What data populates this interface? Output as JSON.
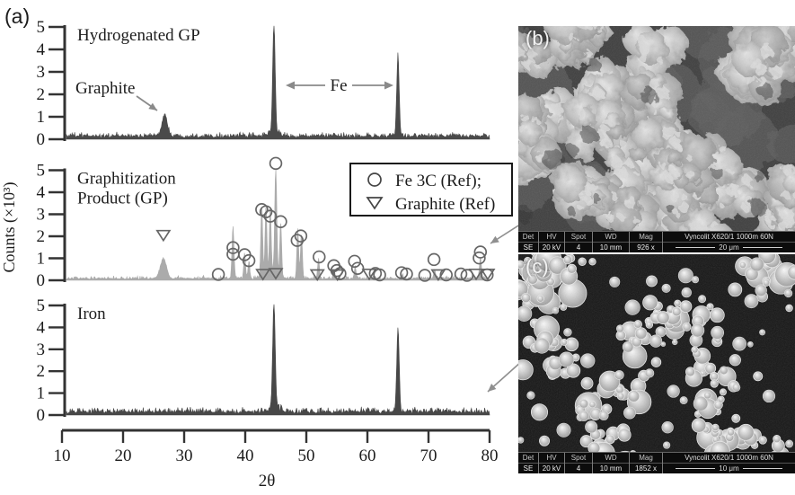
{
  "figure_label": "(a)",
  "axis": {
    "xlabel": "2θ",
    "ylabel": "Counts (×10³)",
    "x_ticks": [
      10,
      20,
      30,
      40,
      50,
      60,
      70,
      80
    ],
    "y_ticks": [
      0,
      1,
      2,
      3,
      4,
      5
    ]
  },
  "legend": {
    "items": [
      {
        "marker": "circle",
        "label": "Fe 3C (Ref);"
      },
      {
        "marker": "triangle-down",
        "label": "Graphite (Ref)"
      }
    ]
  },
  "chart_data": [
    {
      "type": "line",
      "title": "Hydrogenated GP",
      "xlabel": "2θ",
      "ylabel": "Counts (×10³)",
      "xlim": [
        10,
        80
      ],
      "ylim": [
        0,
        5
      ],
      "grid": false,
      "color": "#4a4a4a",
      "noise": {
        "base": 0.1,
        "amp": 0.22
      },
      "peaks": [
        [
          26.8,
          0.95,
          0.45
        ],
        [
          44.7,
          4.8,
          0.2
        ],
        [
          44.7,
          0.25,
          0.8
        ],
        [
          65.0,
          3.6,
          0.2
        ]
      ],
      "annotations": [
        {
          "text": "Graphite",
          "points_to": 26.8
        },
        {
          "text": "Fe",
          "points_to": [
            44.7,
            65.0
          ]
        }
      ]
    },
    {
      "type": "line",
      "title": "Graphitization Product (GP)",
      "title_lines": [
        "Graphitization",
        "Product (GP)"
      ],
      "xlabel": "2θ",
      "ylabel": "Counts (×10³)",
      "xlim": [
        10,
        80
      ],
      "ylim": [
        0,
        5
      ],
      "grid": false,
      "color": "#ababab",
      "noise": {
        "base": 0.06,
        "amp": 0.14
      },
      "peaks": [
        [
          26.6,
          0.9,
          0.5
        ],
        [
          38.0,
          2.3,
          0.16
        ],
        [
          39.9,
          1.15,
          0.14
        ],
        [
          40.6,
          0.8,
          0.14
        ],
        [
          42.7,
          3.25,
          0.15
        ],
        [
          43.4,
          3.15,
          0.15
        ],
        [
          44.1,
          2.95,
          0.15
        ],
        [
          45.0,
          4.9,
          0.17
        ],
        [
          44.3,
          0.25,
          1.0
        ],
        [
          45.8,
          2.5,
          0.15
        ],
        [
          48.6,
          2.2,
          0.15
        ],
        [
          49.2,
          2.05,
          0.15
        ],
        [
          52.0,
          0.85,
          0.15
        ],
        [
          54.5,
          0.35,
          0.15
        ],
        [
          58.0,
          0.5,
          0.15
        ],
        [
          61.0,
          0.15,
          0.15
        ],
        [
          65.7,
          0.2,
          0.15
        ],
        [
          71.0,
          0.45,
          0.15
        ],
        [
          78.5,
          0.9,
          0.17
        ]
      ],
      "ref_markers": {
        "fe3c": {
          "label": "Fe 3C (Ref);",
          "points": [
            [
              35.6,
              0.1
            ],
            [
              38.0,
              1.32
            ],
            [
              38.0,
              1.02
            ],
            [
              39.9,
              1.0
            ],
            [
              40.6,
              0.73
            ],
            [
              42.7,
              3.05
            ],
            [
              43.4,
              2.95
            ],
            [
              44.1,
              2.75
            ],
            [
              45.0,
              5.15
            ],
            [
              45.8,
              2.5
            ],
            [
              48.5,
              1.65
            ],
            [
              49.1,
              1.85
            ],
            [
              52.1,
              0.9
            ],
            [
              54.5,
              0.5
            ],
            [
              55.0,
              0.28
            ],
            [
              55.5,
              0.14
            ],
            [
              57.9,
              0.7
            ],
            [
              58.4,
              0.38
            ],
            [
              61.3,
              0.15
            ],
            [
              62.0,
              0.08
            ],
            [
              65.6,
              0.18
            ],
            [
              66.4,
              0.12
            ],
            [
              69.4,
              0.06
            ],
            [
              70.9,
              0.78
            ],
            [
              72.9,
              0.08
            ],
            [
              75.3,
              0.12
            ],
            [
              76.3,
              0.06
            ],
            [
              78.3,
              0.85
            ],
            [
              78.5,
              1.12
            ],
            [
              79.6,
              0.08
            ]
          ]
        },
        "graphite": {
          "label": "Graphite (Ref)",
          "points": [
            [
              26.6,
              1.85
            ],
            [
              42.9,
              0.08
            ],
            [
              45.0,
              0.12
            ],
            [
              51.8,
              0.06
            ],
            [
              55.1,
              0.06
            ],
            [
              60.3,
              0.09
            ],
            [
              71.6,
              0.06
            ],
            [
              77.8,
              0.09
            ],
            [
              79.7,
              0.09
            ]
          ]
        }
      }
    },
    {
      "type": "line",
      "title": "Iron",
      "xlabel": "2θ",
      "ylabel": "Counts (×10³)",
      "xlim": [
        10,
        80
      ],
      "ylim": [
        0,
        5
      ],
      "grid": false,
      "color": "#474747",
      "noise": {
        "base": 0.1,
        "amp": 0.28
      },
      "peaks": [
        [
          44.7,
          4.8,
          0.2
        ],
        [
          44.7,
          0.3,
          0.7
        ],
        [
          65.0,
          3.85,
          0.2
        ]
      ]
    }
  ],
  "sem_b": {
    "label": "(b)",
    "meta_headers": [
      "Det",
      "HV",
      "Spot",
      "WD",
      "Mag"
    ],
    "meta_values": [
      "SE",
      "20 kV",
      "4",
      "10 mm",
      "926 x"
    ],
    "brand": "Vyncolit X620/1 1000m 60N",
    "scale_text": "20 μm"
  },
  "sem_c": {
    "label": "(c)",
    "meta_headers": [
      "Det",
      "HV",
      "Spot",
      "WD",
      "Mag"
    ],
    "meta_values": [
      "SE",
      "20 kV",
      "4",
      "10 mm",
      "1852 x"
    ],
    "brand": "Vyncolit X620/1 1000m 60N",
    "scale_text": "10 μm"
  }
}
